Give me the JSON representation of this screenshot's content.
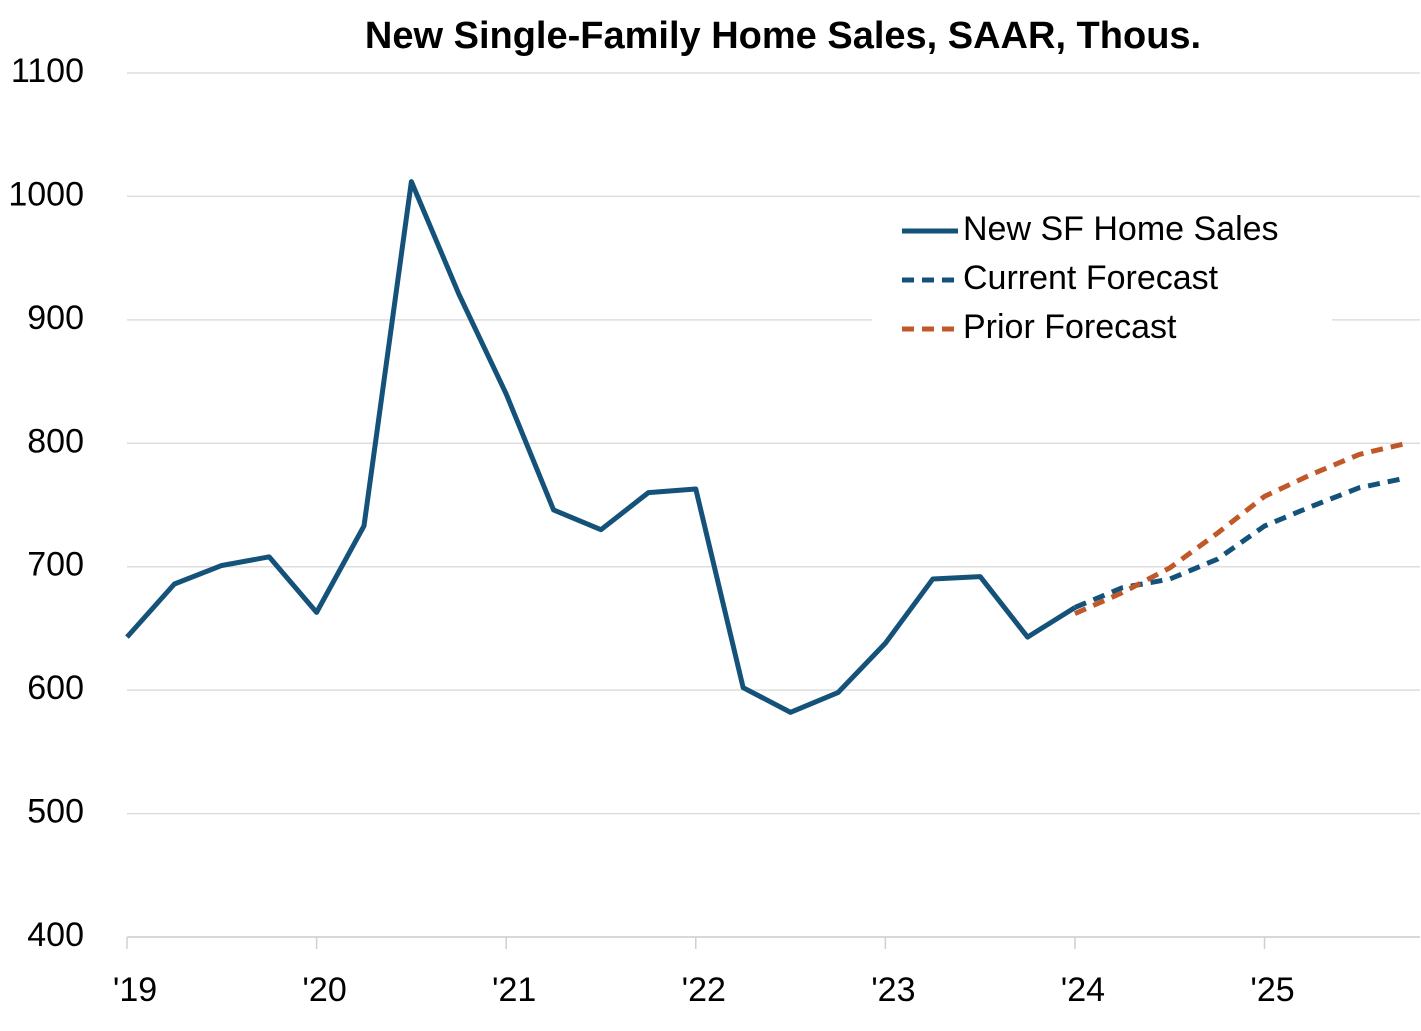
{
  "chart_data": {
    "type": "line",
    "title": "New Single-Family Home Sales, SAAR, Thous.",
    "xlim": [
      2019,
      2025.82
    ],
    "ylim": [
      400,
      1100
    ],
    "xticks": [
      {
        "value": 2019,
        "label": "'19"
      },
      {
        "value": 2020,
        "label": "'20"
      },
      {
        "value": 2021,
        "label": "'21"
      },
      {
        "value": 2022,
        "label": "'22"
      },
      {
        "value": 2023,
        "label": "'23"
      },
      {
        "value": 2024,
        "label": "'24"
      },
      {
        "value": 2025,
        "label": "'25"
      }
    ],
    "yticks": [
      400,
      500,
      600,
      700,
      800,
      900,
      1000,
      1100
    ],
    "grid": true,
    "legend": "upper right",
    "series": [
      {
        "name": "New SF Home Sales",
        "color": "#14527a",
        "dash": false,
        "x": [
          2019,
          2019.25,
          2019.5,
          2019.75,
          2020,
          2020.25,
          2020.5,
          2020.75,
          2021,
          2021.25,
          2021.5,
          2021.75,
          2022,
          2022.25,
          2022.5,
          2022.75,
          2023,
          2023.25,
          2023.5,
          2023.75,
          2024
        ],
        "values": [
          643,
          686,
          701,
          708,
          663,
          733,
          1012,
          921,
          840,
          746,
          730,
          760,
          763,
          602,
          582,
          598,
          638,
          690,
          692,
          643,
          667
        ]
      },
      {
        "name": "Current Forecast",
        "color": "#14527a",
        "dash": true,
        "x": [
          2024,
          2024.25,
          2024.5,
          2024.75,
          2025,
          2025.25,
          2025.5,
          2025.75
        ],
        "values": [
          667,
          683,
          690,
          706,
          733,
          749,
          764,
          772
        ]
      },
      {
        "name": "Prior Forecast",
        "color": "#c0582a",
        "dash": true,
        "x": [
          2024,
          2024.25,
          2024.5,
          2024.75,
          2025,
          2025.25,
          2025.5,
          2025.75
        ],
        "values": [
          662,
          679,
          699,
          727,
          757,
          775,
          791,
          800
        ]
      }
    ]
  }
}
